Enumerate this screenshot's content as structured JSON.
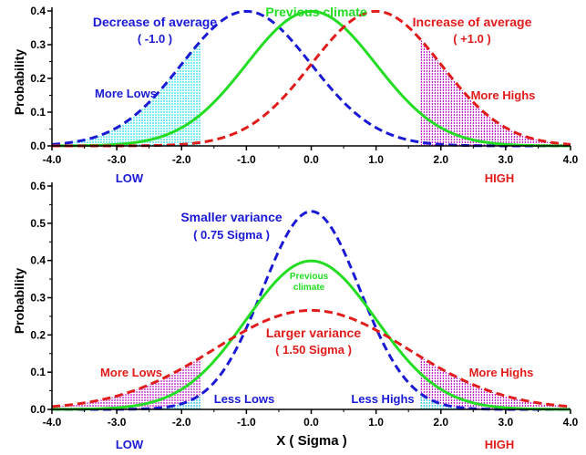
{
  "colors": {
    "blue": "#1a1ad6",
    "green": "#22dd22",
    "red": "#e21b1b",
    "cyan": "#33e0ea",
    "magenta": "#c21fcf",
    "axis": "#000000"
  },
  "chart_data": [
    {
      "type": "line",
      "xlim": [
        -4.0,
        4.0
      ],
      "ylim": [
        0.0,
        0.4
      ],
      "ylabel": "Probability",
      "xticks": [
        "-4.0",
        "-3.0",
        "-2.0",
        "-1.0",
        "0.0",
        "1.0",
        "2.0",
        "3.0",
        "4.0"
      ],
      "yticks": [
        "0.0",
        "0.1",
        "0.2",
        "0.3",
        "0.4"
      ],
      "series": [
        {
          "name": "Decrease of average",
          "distribution": "normal",
          "mean": -1.0,
          "sd": 1.0,
          "color": "#1a1ad6",
          "style": "dashed"
        },
        {
          "name": "Previous climate",
          "distribution": "normal",
          "mean": 0.0,
          "sd": 1.0,
          "color": "#22dd22",
          "style": "solid"
        },
        {
          "name": "Increase of average",
          "distribution": "normal",
          "mean": 1.0,
          "sd": 1.0,
          "color": "#e21b1b",
          "style": "dashed"
        }
      ],
      "shaded": [
        {
          "label": "More Lows",
          "x_from": -4.0,
          "x_to": -1.7,
          "curve": "Decrease of average",
          "color": "#33e0ea"
        },
        {
          "label": "More Highs",
          "x_from": 1.7,
          "x_to": 4.0,
          "curve": "Increase of average",
          "color": "#c21fcf"
        }
      ],
      "annotations": {
        "decrease": "Decrease of average",
        "decrease_value": "( -1.0 )",
        "previous": "Previous climate",
        "increase": "Increase of average",
        "increase_value": "( +1.0 )",
        "more_lows": "More Lows",
        "more_highs": "More Highs",
        "low": "LOW",
        "high": "HIGH"
      }
    },
    {
      "type": "line",
      "xlim": [
        -4.0,
        4.0
      ],
      "ylim": [
        0.0,
        0.6
      ],
      "ylabel": "Probability",
      "xlabel": "X ( Sigma )",
      "xticks": [
        "-4.0",
        "-3.0",
        "-2.0",
        "-1.0",
        "0.0",
        "1.0",
        "2.0",
        "3.0",
        "4.0"
      ],
      "yticks": [
        "0.0",
        "0.1",
        "0.2",
        "0.3",
        "0.4",
        "0.5",
        "0.6"
      ],
      "series": [
        {
          "name": "Smaller variance",
          "distribution": "normal",
          "mean": 0.0,
          "sd": 0.75,
          "color": "#1a1ad6",
          "style": "dashed"
        },
        {
          "name": "Previous climate",
          "distribution": "normal",
          "mean": 0.0,
          "sd": 1.0,
          "color": "#22dd22",
          "style": "solid"
        },
        {
          "name": "Larger variance",
          "distribution": "normal",
          "mean": 0.0,
          "sd": 1.5,
          "color": "#e21b1b",
          "style": "dashed"
        }
      ],
      "shaded": [
        {
          "label": "More Lows",
          "x_from": -4.0,
          "x_to": -1.7,
          "curve": "Larger variance",
          "color": "#c21fcf"
        },
        {
          "label": "More Highs",
          "x_from": 1.7,
          "x_to": 4.0,
          "curve": "Larger variance",
          "color": "#c21fcf"
        },
        {
          "label": "Less Lows",
          "x_from": -4.0,
          "x_to": -1.7,
          "curve": "Smaller variance",
          "color": "#33e0ea"
        },
        {
          "label": "Less Highs",
          "x_from": 1.7,
          "x_to": 4.0,
          "curve": "Smaller variance",
          "color": "#33e0ea"
        }
      ],
      "annotations": {
        "smaller": "Smaller variance",
        "smaller_value": "( 0.75 Sigma )",
        "previous_line1": "Previous",
        "previous_line2": "climate",
        "larger": "Larger variance",
        "larger_value": "( 1.50 Sigma )",
        "more_lows": "More Lows",
        "more_highs": "More Highs",
        "less_lows": "Less Lows",
        "less_highs": "Less Highs",
        "low": "LOW",
        "high": "HIGH"
      }
    }
  ]
}
